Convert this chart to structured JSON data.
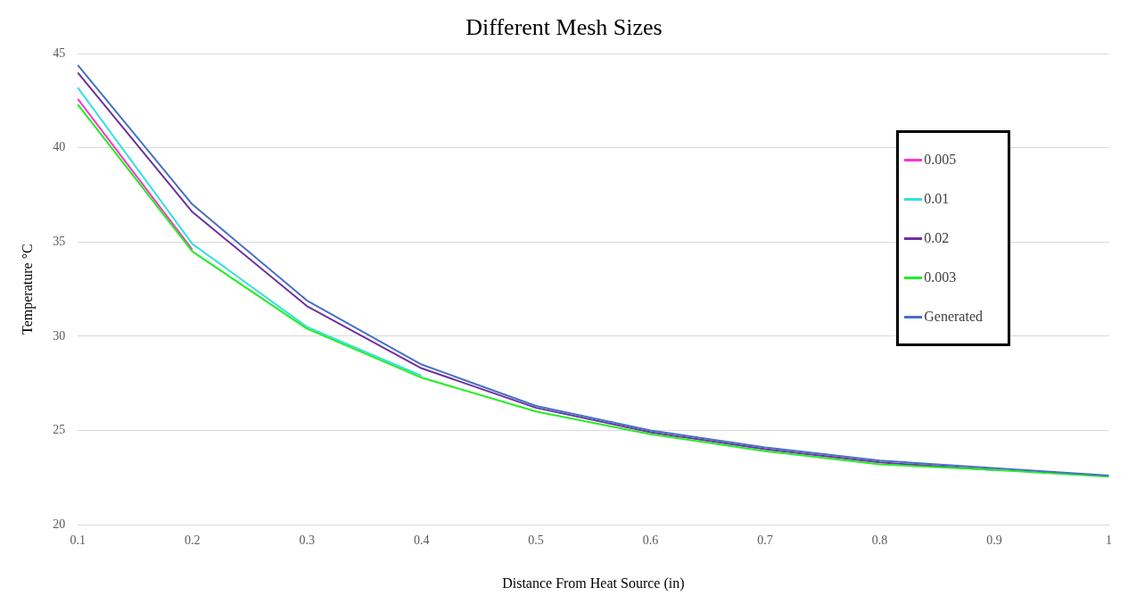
{
  "chart_data": {
    "type": "line",
    "title": "Different Mesh Sizes",
    "xlabel": "Distance From Heat Source (in)",
    "ylabel": "Temperature °C",
    "categories": [
      "0.1",
      "0.2",
      "0.3",
      "0.4",
      "0.5",
      "0.6",
      "0.7",
      "0.8",
      "0.9",
      "1"
    ],
    "ylim": [
      20,
      45
    ],
    "yticks": [
      20,
      25,
      30,
      35,
      40,
      45
    ],
    "grid": "y",
    "legend": "top right",
    "marker": "none",
    "line_style": "solid",
    "series": [
      {
        "name": "0.005",
        "color": "#ff33cc",
        "values": [
          42.6,
          34.6,
          null,
          null,
          null,
          null,
          null,
          null,
          null,
          null
        ]
      },
      {
        "name": "0.01",
        "color": "#33e0e0",
        "values": [
          43.2,
          34.9,
          30.5,
          27.9,
          null,
          null,
          null,
          null,
          null,
          null
        ]
      },
      {
        "name": "0.02",
        "color": "#7030a0",
        "values": [
          44.0,
          36.6,
          31.6,
          28.3,
          26.2,
          24.9,
          24.0,
          23.3,
          22.9,
          null
        ]
      },
      {
        "name": "0.003",
        "color": "#22ee22",
        "values": [
          42.3,
          34.5,
          30.4,
          27.8,
          26.0,
          24.8,
          23.9,
          23.2,
          22.9,
          22.55
        ]
      },
      {
        "name": "Generated",
        "color": "#4472c4",
        "values": [
          44.4,
          37.0,
          31.9,
          28.5,
          26.3,
          25.0,
          24.1,
          23.4,
          23.0,
          22.6
        ]
      }
    ]
  }
}
